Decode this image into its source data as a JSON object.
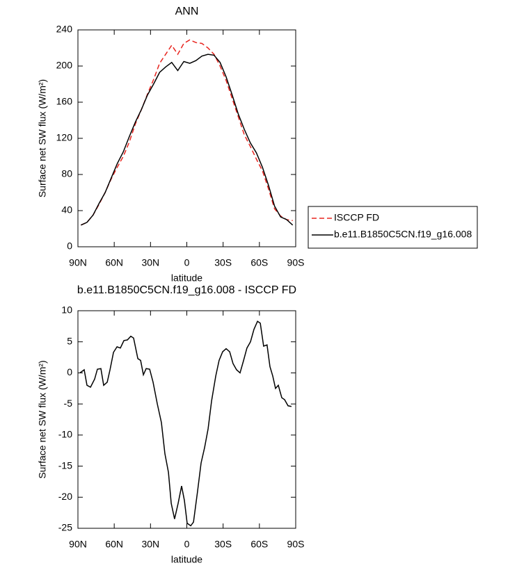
{
  "chart_data": [
    {
      "type": "line",
      "title": "ANN",
      "xlabel": "latitude",
      "ylabel": "Surface net SW flux (W/m²)",
      "x": [
        87.5,
        82.5,
        77.5,
        72.5,
        67.5,
        62.5,
        57.5,
        52.5,
        47.5,
        42.5,
        37.5,
        32.5,
        27.5,
        22.5,
        17.5,
        12.5,
        7.5,
        2.5,
        -2.5,
        -7.5,
        -12.5,
        -17.5,
        -22.5,
        -27.5,
        -32.5,
        -37.5,
        -42.5,
        -47.5,
        -52.5,
        -57.5,
        -62.5,
        -67.5,
        -72.5,
        -77.5,
        -82.5,
        -87.5
      ],
      "series": [
        {
          "name": "ISCCP FD",
          "color": "#e8251f",
          "linestyle": "dashed",
          "values": [
            24,
            27,
            35,
            47,
            60,
            75,
            88,
            100,
            116,
            136,
            152,
            169,
            185,
            203,
            213,
            223,
            213,
            225,
            229,
            226,
            225,
            220,
            213,
            200,
            184,
            164,
            144,
            124,
            111,
            97,
            84,
            64,
            42,
            34,
            30,
            29
          ]
        },
        {
          "name": "b.e11.B1850C5CN.f19_g16.008",
          "color": "#000000",
          "linestyle": "solid",
          "values": [
            24,
            27,
            35,
            48,
            60,
            76,
            92,
            105,
            122,
            138,
            152,
            168,
            180,
            193,
            199,
            204,
            195,
            205,
            203,
            206,
            211,
            213,
            212,
            204,
            188,
            168,
            147,
            130,
            115,
            104,
            88,
            68,
            45,
            33,
            30,
            24
          ]
        }
      ],
      "xlim": [
        90,
        -90
      ],
      "xticks": [
        {
          "value": 90,
          "label": "90N"
        },
        {
          "value": 60,
          "label": "60N"
        },
        {
          "value": 30,
          "label": "30N"
        },
        0,
        {
          "value": -30,
          "label": "30S"
        },
        {
          "value": -60,
          "label": "60S"
        },
        {
          "value": -90,
          "label": "90S"
        }
      ],
      "ylim": [
        0,
        240
      ],
      "yticks": [
        0,
        40,
        80,
        120,
        160,
        200,
        240
      ],
      "grid": false,
      "legend": "outside-right"
    },
    {
      "type": "line",
      "title": "b.e11.B1850C5CN.f19_g16.008 - ISCCP FD",
      "xlabel": "latitude",
      "ylabel": "Surface net SW flux (W/m²)",
      "x": [
        88.3,
        84.8,
        82.5,
        79.6,
        76.2,
        73.9,
        71.0,
        68.7,
        65.8,
        63.5,
        60.6,
        57.7,
        54.9,
        52.0,
        49.1,
        46.3,
        44.0,
        40.5,
        38.2,
        35.9,
        33.6,
        30.7,
        27.9,
        24.4,
        21.0,
        18.1,
        15.2,
        12.9,
        10.1,
        7.2,
        4.3,
        2.0,
        -0.3,
        -3.2,
        -5.5,
        -8.9,
        -11.8,
        -14.7,
        -17.6,
        -20.5,
        -23.9,
        -26.7,
        -29.6,
        -32.5,
        -35.4,
        -38.2,
        -41.1,
        -44.0,
        -46.9,
        -49.7,
        -52.6,
        -55.5,
        -58.4,
        -60.7,
        -63.5,
        -66.3,
        -68.7,
        -71.0,
        -73.3,
        -75.6,
        -78.5,
        -80.8,
        -83.7,
        -86.5
      ],
      "values": [
        0,
        0.5,
        -2,
        -2.3,
        -1,
        0.6,
        0.7,
        -2,
        -1.5,
        0.5,
        3.3,
        4.2,
        4,
        5.2,
        5.3,
        5.9,
        5.6,
        2.3,
        2,
        -0.3,
        0.7,
        0.6,
        -1.5,
        -5,
        -8,
        -13,
        -16,
        -21,
        -23.5,
        -21,
        -18.2,
        -20.5,
        -24.2,
        -24.6,
        -24,
        -19,
        -14.5,
        -12,
        -9,
        -4.5,
        -0.5,
        2,
        3.4,
        3.9,
        3.4,
        1.5,
        0.5,
        0,
        2,
        4,
        5,
        7,
        8.3,
        8,
        4.3,
        4.5,
        1,
        -0.5,
        -2.5,
        -2,
        -4,
        -4.3,
        -5.3,
        -5.4
      ],
      "color": "#000000",
      "xlim": [
        90,
        -90
      ],
      "xticks": [
        {
          "value": 90,
          "label": "90N"
        },
        {
          "value": 60,
          "label": "60N"
        },
        {
          "value": 30,
          "label": "30N"
        },
        0,
        {
          "value": -30,
          "label": "30S"
        },
        {
          "value": -60,
          "label": "60S"
        },
        {
          "value": -90,
          "label": "90S"
        }
      ],
      "ylim": [
        -25,
        10
      ],
      "yticks": [
        -25,
        -20,
        -15,
        -10,
        -5,
        0,
        5,
        10
      ],
      "grid": false
    }
  ]
}
